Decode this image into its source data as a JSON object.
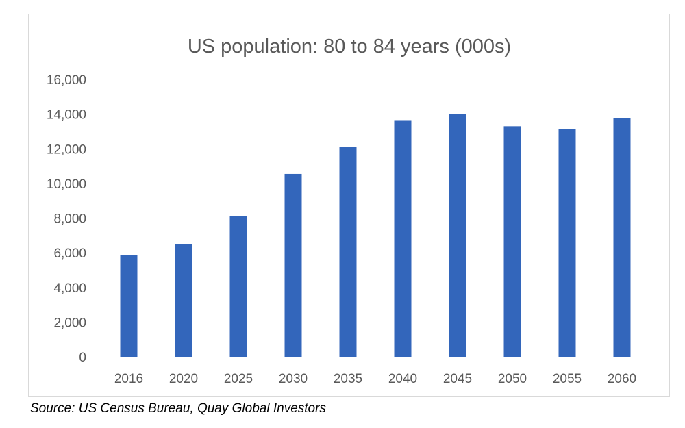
{
  "chart_data": {
    "type": "bar",
    "title": "US population: 80 to 84 years (000s)",
    "categories": [
      "2016",
      "2020",
      "2025",
      "2030",
      "2035",
      "2040",
      "2045",
      "2050",
      "2055",
      "2060"
    ],
    "values": [
      5850,
      6480,
      8100,
      10550,
      12100,
      13650,
      14000,
      13300,
      13130,
      13750
    ],
    "yticks": [
      "0",
      "2,000",
      "4,000",
      "6,000",
      "8,000",
      "10,000",
      "12,000",
      "14,000",
      "16,000"
    ],
    "ylim": [
      0,
      16000
    ],
    "xlabel": "",
    "ylabel": "",
    "grid": false,
    "legend": "none"
  },
  "colors": {
    "bar": "#3366bb",
    "axis": "#d9d9d9",
    "text": "#595959",
    "title": "#595959"
  },
  "footer": {
    "source": "Source:  US Census Bureau, Quay Global Investors"
  }
}
